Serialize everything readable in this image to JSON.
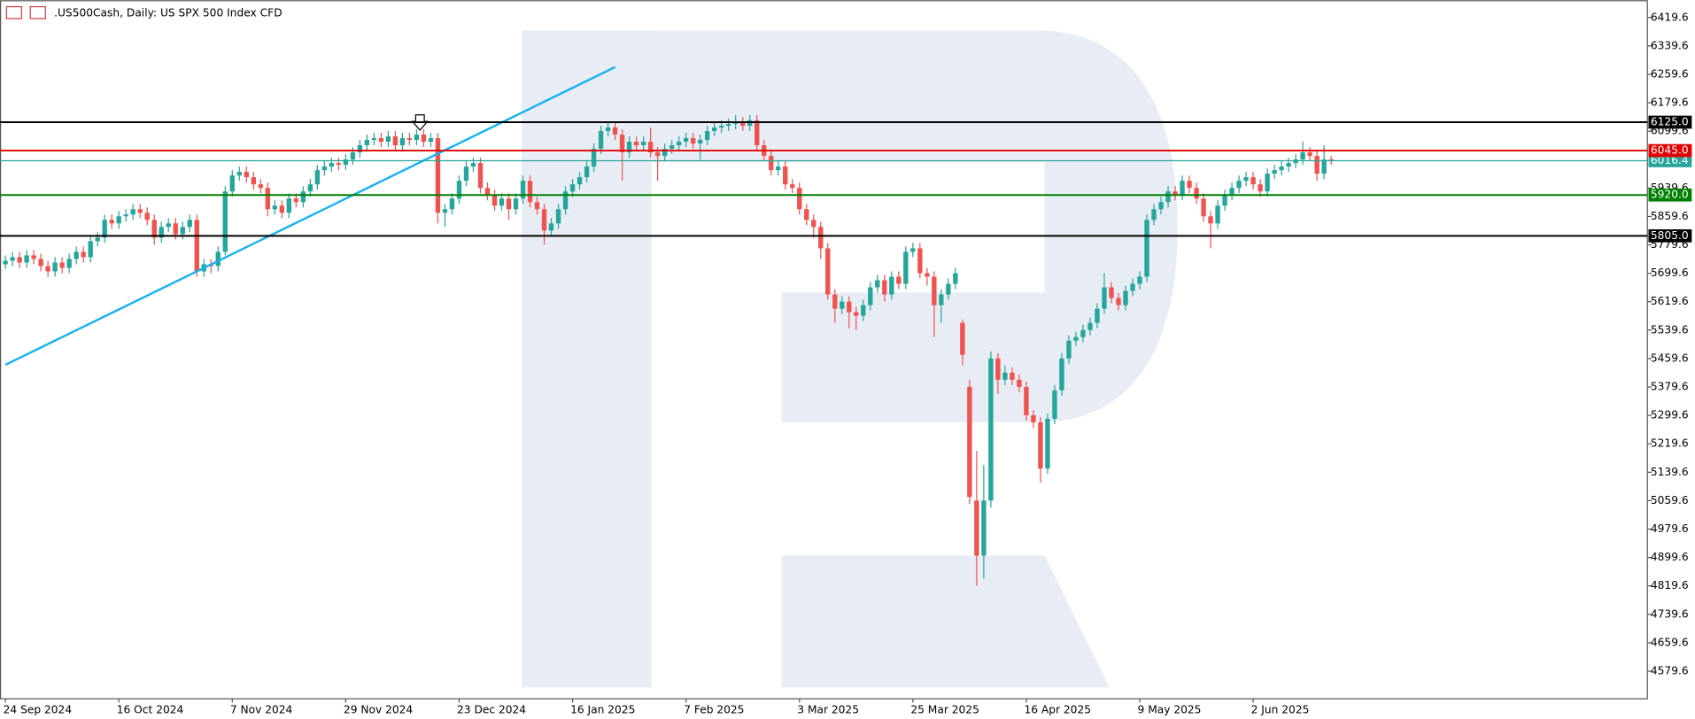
{
  "chart_data": {
    "type": "candlestick",
    "title": ".US500Cash, Daily:  US SPX 500 Index CFD",
    "up_color": "#26a69a",
    "down_color": "#ef5350",
    "categories": [
      "24 Sep 2024",
      null,
      null,
      null,
      null,
      null,
      null,
      null,
      null,
      null,
      null,
      null,
      null,
      null,
      null,
      null,
      "16 Oct 2024",
      null,
      null,
      null,
      null,
      null,
      null,
      null,
      null,
      null,
      null,
      null,
      null,
      null,
      null,
      null,
      "7 Nov 2024",
      null,
      null,
      null,
      null,
      null,
      null,
      null,
      null,
      null,
      null,
      null,
      null,
      null,
      null,
      null,
      "29 Nov 2024",
      null,
      null,
      null,
      null,
      null,
      null,
      null,
      null,
      null,
      null,
      null,
      null,
      null,
      null,
      null,
      "23 Dec 2024",
      null,
      null,
      null,
      null,
      null,
      null,
      null,
      null,
      null,
      null,
      null,
      null,
      null,
      null,
      null,
      "16 Jan 2025",
      null,
      null,
      null,
      null,
      null,
      null,
      null,
      null,
      null,
      null,
      null,
      null,
      null,
      null,
      null,
      "7 Feb 2025",
      null,
      null,
      null,
      null,
      null,
      null,
      null,
      null,
      null,
      null,
      null,
      null,
      null,
      null,
      null,
      "3 Mar 2025",
      null,
      null,
      null,
      null,
      null,
      null,
      null,
      null,
      null,
      null,
      null,
      null,
      null,
      null,
      null,
      "25 Mar 2025",
      null,
      null,
      null,
      null,
      null,
      null,
      null,
      null,
      null,
      null,
      null,
      null,
      null,
      null,
      null,
      "16 Apr 2025",
      null,
      null,
      null,
      null,
      null,
      null,
      null,
      null,
      null,
      null,
      null,
      null,
      null,
      null,
      null,
      "9 May 2025",
      null,
      null,
      null,
      null,
      null,
      null,
      null,
      null,
      null,
      null,
      null,
      null,
      null,
      null,
      null,
      "2 Jun 2025",
      null,
      null,
      null,
      null,
      null,
      null,
      null,
      null,
      null,
      null,
      null
    ],
    "ohlc": [
      [
        5725,
        5750,
        5712,
        5735
      ],
      [
        5735,
        5760,
        5720,
        5745
      ],
      [
        5745,
        5760,
        5715,
        5730
      ],
      [
        5730,
        5765,
        5715,
        5750
      ],
      [
        5750,
        5765,
        5725,
        5740
      ],
      [
        5740,
        5755,
        5705,
        5720
      ],
      [
        5720,
        5735,
        5690,
        5705
      ],
      [
        5705,
        5745,
        5690,
        5730
      ],
      [
        5730,
        5745,
        5700,
        5715
      ],
      [
        5715,
        5755,
        5700,
        5740
      ],
      [
        5740,
        5775,
        5725,
        5760
      ],
      [
        5760,
        5775,
        5730,
        5745
      ],
      [
        5745,
        5805,
        5730,
        5790
      ],
      [
        5790,
        5815,
        5775,
        5800
      ],
      [
        5800,
        5865,
        5785,
        5850
      ],
      [
        5850,
        5865,
        5825,
        5840
      ],
      [
        5840,
        5875,
        5825,
        5860
      ],
      [
        5860,
        5880,
        5845,
        5865
      ],
      [
        5865,
        5895,
        5850,
        5880
      ],
      [
        5880,
        5895,
        5855,
        5870
      ],
      [
        5870,
        5885,
        5835,
        5850
      ],
      [
        5850,
        5865,
        5780,
        5800
      ],
      [
        5800,
        5845,
        5785,
        5830
      ],
      [
        5830,
        5855,
        5815,
        5840
      ],
      [
        5840,
        5855,
        5795,
        5810
      ],
      [
        5810,
        5845,
        5795,
        5830
      ],
      [
        5830,
        5865,
        5815,
        5850
      ],
      [
        5850,
        5865,
        5690,
        5705
      ],
      [
        5705,
        5740,
        5690,
        5725
      ],
      [
        5725,
        5740,
        5700,
        5720
      ],
      [
        5720,
        5775,
        5705,
        5760
      ],
      [
        5760,
        5945,
        5750,
        5930
      ],
      [
        5930,
        5990,
        5915,
        5975
      ],
      [
        5975,
        6000,
        5960,
        5985
      ],
      [
        5985,
        6000,
        5955,
        5970
      ],
      [
        5970,
        5985,
        5935,
        5950
      ],
      [
        5950,
        5965,
        5925,
        5940
      ],
      [
        5940,
        5955,
        5860,
        5880
      ],
      [
        5880,
        5905,
        5865,
        5890
      ],
      [
        5890,
        5905,
        5855,
        5870
      ],
      [
        5870,
        5925,
        5855,
        5910
      ],
      [
        5910,
        5925,
        5885,
        5900
      ],
      [
        5900,
        5945,
        5885,
        5930
      ],
      [
        5930,
        5965,
        5915,
        5950
      ],
      [
        5950,
        6005,
        5935,
        5990
      ],
      [
        5990,
        6015,
        5975,
        6000
      ],
      [
        6000,
        6025,
        5985,
        6010
      ],
      [
        6010,
        6025,
        5990,
        6005
      ],
      [
        6005,
        6035,
        5990,
        6020
      ],
      [
        6020,
        6055,
        6005,
        6040
      ],
      [
        6040,
        6075,
        6025,
        6060
      ],
      [
        6060,
        6090,
        6045,
        6075
      ],
      [
        6075,
        6095,
        6060,
        6080
      ],
      [
        6080,
        6095,
        6055,
        6070
      ],
      [
        6070,
        6100,
        6055,
        6085
      ],
      [
        6085,
        6100,
        6045,
        6060
      ],
      [
        6060,
        6095,
        6045,
        6080
      ],
      [
        6080,
        6095,
        6060,
        6075
      ],
      [
        6075,
        6105,
        6060,
        6090
      ],
      [
        6090,
        6105,
        6055,
        6070
      ],
      [
        6070,
        6095,
        6055,
        6080
      ],
      [
        6080,
        6095,
        5840,
        5870
      ],
      [
        5870,
        5895,
        5830,
        5880
      ],
      [
        5880,
        5925,
        5865,
        5910
      ],
      [
        5910,
        5975,
        5895,
        5960
      ],
      [
        5960,
        6015,
        5945,
        6000
      ],
      [
        6000,
        6025,
        5985,
        6010
      ],
      [
        6010,
        6025,
        5925,
        5940
      ],
      [
        5940,
        5955,
        5905,
        5920
      ],
      [
        5920,
        5935,
        5875,
        5890
      ],
      [
        5890,
        5925,
        5875,
        5910
      ],
      [
        5910,
        5925,
        5850,
        5880
      ],
      [
        5880,
        5925,
        5865,
        5910
      ],
      [
        5910,
        5975,
        5895,
        5960
      ],
      [
        5960,
        5975,
        5885,
        5900
      ],
      [
        5900,
        5915,
        5865,
        5880
      ],
      [
        5880,
        5895,
        5780,
        5820
      ],
      [
        5820,
        5855,
        5805,
        5840
      ],
      [
        5840,
        5895,
        5825,
        5880
      ],
      [
        5880,
        5945,
        5865,
        5930
      ],
      [
        5930,
        5965,
        5915,
        5950
      ],
      [
        5950,
        5985,
        5935,
        5970
      ],
      [
        5970,
        6015,
        5955,
        6000
      ],
      [
        6000,
        6065,
        5985,
        6050
      ],
      [
        6050,
        6115,
        6035,
        6100
      ],
      [
        6100,
        6125,
        6085,
        6110
      ],
      [
        6110,
        6125,
        6075,
        6090
      ],
      [
        6090,
        6105,
        5960,
        6040
      ],
      [
        6040,
        6085,
        6025,
        6070
      ],
      [
        6070,
        6085,
        6045,
        6060
      ],
      [
        6060,
        6085,
        6045,
        6070
      ],
      [
        6070,
        6110,
        6025,
        6040
      ],
      [
        6040,
        6055,
        5960,
        6030
      ],
      [
        6030,
        6065,
        6015,
        6050
      ],
      [
        6050,
        6075,
        6035,
        6060
      ],
      [
        6060,
        6085,
        6045,
        6070
      ],
      [
        6070,
        6095,
        6055,
        6080
      ],
      [
        6080,
        6095,
        6050,
        6065
      ],
      [
        6065,
        6090,
        6020,
        6075
      ],
      [
        6075,
        6115,
        6060,
        6100
      ],
      [
        6100,
        6125,
        6085,
        6110
      ],
      [
        6110,
        6130,
        6095,
        6115
      ],
      [
        6115,
        6135,
        6100,
        6120
      ],
      [
        6120,
        6145,
        6105,
        6125
      ],
      [
        6125,
        6140,
        6100,
        6115
      ],
      [
        6115,
        6145,
        6100,
        6130
      ],
      [
        6130,
        6145,
        6045,
        6060
      ],
      [
        6060,
        6075,
        6015,
        6030
      ],
      [
        6030,
        6045,
        5975,
        5990
      ],
      [
        5990,
        6015,
        5975,
        6000
      ],
      [
        6000,
        6015,
        5935,
        5950
      ],
      [
        5950,
        5965,
        5925,
        5940
      ],
      [
        5940,
        5955,
        5865,
        5880
      ],
      [
        5880,
        5895,
        5835,
        5850
      ],
      [
        5850,
        5865,
        5800,
        5830
      ],
      [
        5830,
        5845,
        5740,
        5770
      ],
      [
        5770,
        5785,
        5625,
        5640
      ],
      [
        5640,
        5655,
        5560,
        5600
      ],
      [
        5600,
        5635,
        5585,
        5620
      ],
      [
        5620,
        5635,
        5545,
        5590
      ],
      [
        5590,
        5605,
        5540,
        5580
      ],
      [
        5580,
        5625,
        5565,
        5610
      ],
      [
        5610,
        5675,
        5595,
        5660
      ],
      [
        5660,
        5695,
        5645,
        5680
      ],
      [
        5680,
        5695,
        5620,
        5640
      ],
      [
        5640,
        5705,
        5625,
        5690
      ],
      [
        5690,
        5705,
        5655,
        5670
      ],
      [
        5670,
        5775,
        5655,
        5760
      ],
      [
        5760,
        5785,
        5745,
        5770
      ],
      [
        5770,
        5785,
        5685,
        5700
      ],
      [
        5700,
        5715,
        5665,
        5690
      ],
      [
        5690,
        5705,
        5520,
        5610
      ],
      [
        5610,
        5655,
        5560,
        5640
      ],
      [
        5640,
        5685,
        5625,
        5670
      ],
      [
        5670,
        5715,
        5655,
        5700
      ],
      [
        5560,
        5570,
        5440,
        5470
      ],
      [
        5380,
        5400,
        5050,
        5070
      ],
      [
        5060,
        5200,
        4820,
        4905
      ],
      [
        4905,
        5160,
        4840,
        5060
      ],
      [
        5060,
        5480,
        5040,
        5460
      ],
      [
        5460,
        5475,
        5360,
        5400
      ],
      [
        5400,
        5440,
        5385,
        5420
      ],
      [
        5420,
        5435,
        5385,
        5400
      ],
      [
        5400,
        5415,
        5365,
        5380
      ],
      [
        5380,
        5395,
        5285,
        5300
      ],
      [
        5300,
        5315,
        5265,
        5280
      ],
      [
        5280,
        5295,
        5110,
        5150
      ],
      [
        5150,
        5305,
        5135,
        5290
      ],
      [
        5290,
        5385,
        5275,
        5370
      ],
      [
        5370,
        5475,
        5355,
        5460
      ],
      [
        5460,
        5525,
        5445,
        5510
      ],
      [
        5510,
        5535,
        5495,
        5520
      ],
      [
        5520,
        5555,
        5505,
        5540
      ],
      [
        5540,
        5575,
        5525,
        5560
      ],
      [
        5560,
        5615,
        5545,
        5600
      ],
      [
        5600,
        5700,
        5585,
        5660
      ],
      [
        5660,
        5675,
        5615,
        5630
      ],
      [
        5630,
        5645,
        5595,
        5610
      ],
      [
        5610,
        5665,
        5595,
        5650
      ],
      [
        5650,
        5685,
        5635,
        5670
      ],
      [
        5670,
        5705,
        5655,
        5690
      ],
      [
        5690,
        5865,
        5675,
        5850
      ],
      [
        5850,
        5895,
        5835,
        5880
      ],
      [
        5880,
        5915,
        5865,
        5900
      ],
      [
        5900,
        5945,
        5885,
        5930
      ],
      [
        5930,
        5945,
        5905,
        5920
      ],
      [
        5920,
        5975,
        5905,
        5960
      ],
      [
        5960,
        5975,
        5925,
        5940
      ],
      [
        5940,
        5955,
        5895,
        5910
      ],
      [
        5910,
        5925,
        5845,
        5860
      ],
      [
        5860,
        5875,
        5770,
        5840
      ],
      [
        5840,
        5905,
        5825,
        5890
      ],
      [
        5890,
        5935,
        5875,
        5920
      ],
      [
        5920,
        5955,
        5905,
        5940
      ],
      [
        5940,
        5975,
        5925,
        5960
      ],
      [
        5960,
        5985,
        5945,
        5970
      ],
      [
        5970,
        5985,
        5935,
        5950
      ],
      [
        5950,
        5965,
        5915,
        5930
      ],
      [
        5930,
        5995,
        5915,
        5980
      ],
      [
        5980,
        6005,
        5965,
        5990
      ],
      [
        5990,
        6015,
        5975,
        6000
      ],
      [
        6000,
        6025,
        5985,
        6010
      ],
      [
        6010,
        6035,
        5995,
        6020
      ],
      [
        6020,
        6070,
        6005,
        6040
      ],
      [
        6040,
        6055,
        6015,
        6030
      ],
      [
        6030,
        6045,
        5960,
        5980
      ],
      [
        5980,
        6060,
        5965,
        6020
      ],
      [
        6020,
        6030,
        6005,
        6016.4
      ]
    ],
    "ylim": [
      4503.5,
      6468.3
    ],
    "yticks": [
      {
        "value": 6419.6,
        "label": "6419.6"
      },
      {
        "value": 6339.6,
        "label": "6339.6"
      },
      {
        "value": 6259.6,
        "label": "6259.6"
      },
      {
        "value": 6179.6,
        "label": "6179.6"
      },
      {
        "value": 6099.6,
        "label": "6099.6"
      },
      {
        "value": 5939.6,
        "label": "5939.6"
      },
      {
        "value": 5859.6,
        "label": "5859.6"
      },
      {
        "value": 5779.6,
        "label": "5779.6"
      },
      {
        "value": 5699.6,
        "label": "5699.6"
      },
      {
        "value": 5619.6,
        "label": "5619.6"
      },
      {
        "value": 5539.6,
        "label": "5539.6"
      },
      {
        "value": 5459.6,
        "label": "5459.6"
      },
      {
        "value": 5379.6,
        "label": "5379.6"
      },
      {
        "value": 5299.6,
        "label": "5299.6"
      },
      {
        "value": 5219.6,
        "label": "5219.6"
      },
      {
        "value": 5139.6,
        "label": "5139.6"
      },
      {
        "value": 5059.6,
        "label": "5059.6"
      },
      {
        "value": 4979.6,
        "label": "4979.6"
      },
      {
        "value": 4899.6,
        "label": "4899.6"
      },
      {
        "value": 4819.6,
        "label": "4819.6"
      },
      {
        "value": 4739.6,
        "label": "4739.6"
      },
      {
        "value": 4659.6,
        "label": "4659.6"
      },
      {
        "value": 4579.6,
        "label": "4579.6"
      }
    ],
    "levels": [
      {
        "value": 6125,
        "label": "6125.0",
        "color": "#000000"
      },
      {
        "value": 6045,
        "label": "6045.0",
        "color": "#e00000"
      },
      {
        "value": 5920,
        "label": "5920.0",
        "color": "#008000"
      },
      {
        "value": 5805,
        "label": "5805.0",
        "color": "#000000"
      }
    ],
    "price_line": {
      "value": 6016.4,
      "color": "#26a69a"
    },
    "trendline": {
      "color": "#1ab2ef",
      "points": [
        [
          0,
          5442
        ],
        [
          86,
          6280
        ]
      ]
    }
  }
}
